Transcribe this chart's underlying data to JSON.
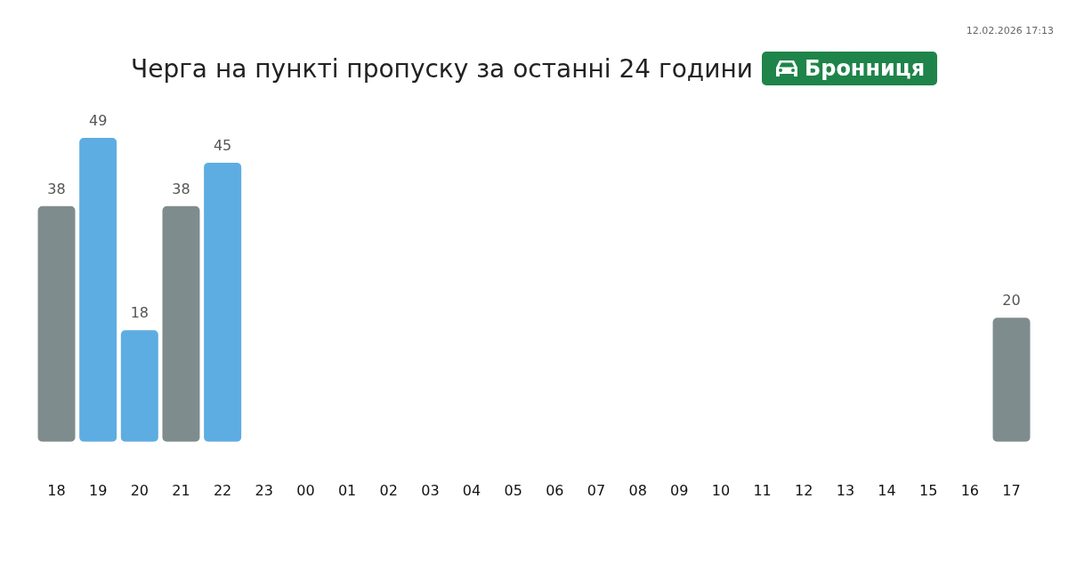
{
  "chart_data": {
    "type": "bar",
    "title": "Черга на пункті пропуску за останні 24 години",
    "subtitle": "Бронниця",
    "annotations": [
      "12.02.2026 17:13"
    ],
    "categories": [
      "18",
      "19",
      "20",
      "21",
      "22",
      "23",
      "00",
      "01",
      "02",
      "03",
      "04",
      "05",
      "06",
      "07",
      "08",
      "09",
      "10",
      "11",
      "12",
      "13",
      "14",
      "15",
      "16",
      "17"
    ],
    "values": [
      38,
      49,
      18,
      38,
      45,
      null,
      null,
      null,
      null,
      null,
      null,
      null,
      null,
      null,
      null,
      null,
      null,
      null,
      null,
      null,
      null,
      null,
      null,
      20
    ],
    "colors": [
      "#7f8c8d",
      "#5dade2",
      "#5dade2",
      "#7f8c8d",
      "#5dade2",
      null,
      null,
      null,
      null,
      null,
      null,
      null,
      null,
      null,
      null,
      null,
      null,
      null,
      null,
      null,
      null,
      null,
      null,
      "#7f8c8d"
    ],
    "data_labels": true,
    "grid": false,
    "legend": false
  }
}
